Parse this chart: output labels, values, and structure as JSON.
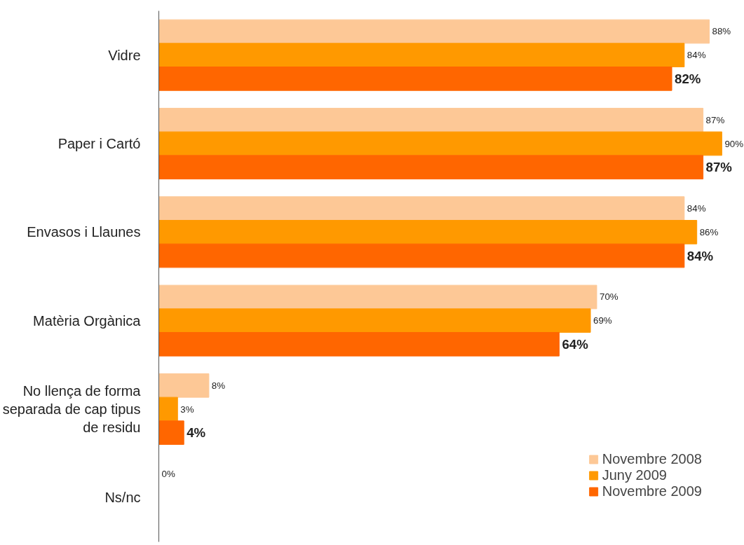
{
  "chart_data": {
    "type": "bar",
    "orientation": "horizontal",
    "categories": [
      "Vidre",
      "Paper i Cartó",
      "Envasos i Llaunes",
      "Matèria Orgànica",
      "No llença de forma separada de cap tipus de residu",
      "Ns/nc"
    ],
    "series": [
      {
        "name": "Novembre 2008",
        "color": "#fdc896",
        "values": [
          88,
          87,
          84,
          70,
          8,
          0
        ],
        "value_labels": [
          "88%",
          "87%",
          "84%",
          "70%",
          "8%",
          "0%"
        ]
      },
      {
        "name": "Juny 2009",
        "color": "#ff9900",
        "values": [
          84,
          90,
          86,
          69,
          3,
          null
        ],
        "value_labels": [
          "84%",
          "90%",
          "86%",
          "69%",
          "3%",
          null
        ]
      },
      {
        "name": "Novembre 2009",
        "color": "#ff6600",
        "values": [
          82,
          87,
          84,
          64,
          4,
          null
        ],
        "value_labels": [
          "82%",
          "87%",
          "84%",
          "64%",
          "4%",
          null
        ]
      }
    ],
    "tick_labels": "y",
    "grid": false,
    "legend": "bottom right"
  }
}
